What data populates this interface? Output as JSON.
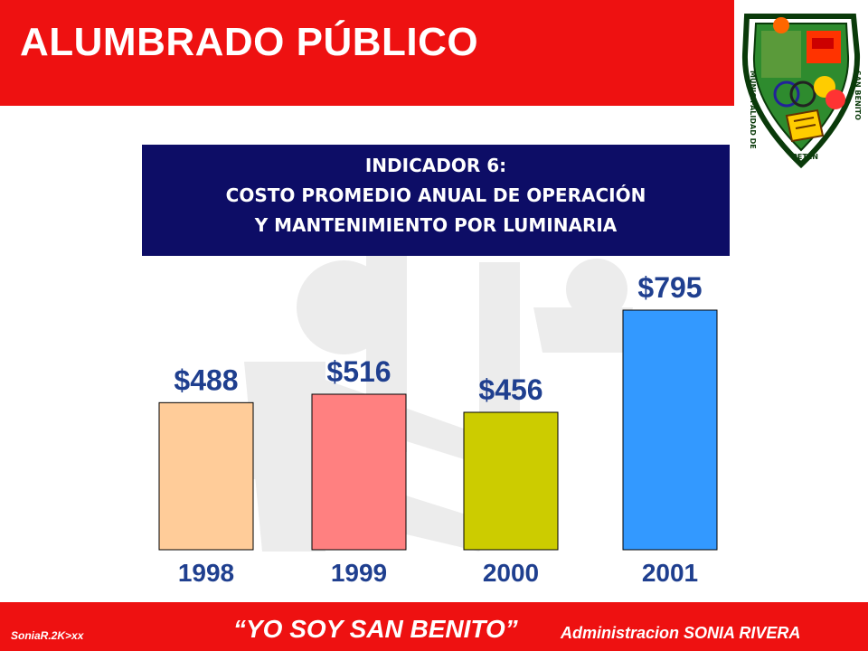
{
  "header": {
    "title": "ALUMBRADO PÚBLICO",
    "background": "#ee1111"
  },
  "logo": {
    "icon": "municipal-coat-of-arms-icon",
    "text_left": "MUNICIPALIDAD DE",
    "text_right": "SAN BENITO",
    "text_bottom": "PETÉN"
  },
  "indicator": {
    "label": "INDICADOR 6:",
    "line1": "COSTO PROMEDIO ANUAL DE OPERACIÓN",
    "line2": "Y MANTENIMIENTO POR LUMINARIA",
    "background": "#0d0d66"
  },
  "chart_data": {
    "type": "bar",
    "categories": [
      "1998",
      "1999",
      "2000",
      "2001"
    ],
    "values": [
      488,
      516,
      456,
      795
    ],
    "data_labels": [
      "$488",
      "$516",
      "$456",
      "$795"
    ],
    "colors": [
      "#ffcc99",
      "#ff8080",
      "#cccc00",
      "#3399ff"
    ],
    "label_color": "#1f3f8f",
    "ylim": [
      0,
      990
    ],
    "grid": false,
    "legend": "none",
    "title": "",
    "xlabel": "",
    "ylabel": ""
  },
  "footer": {
    "author": "SoniaR.2K>xx",
    "slogan": "“YO SOY SAN BENITO”",
    "admin": "Administracion SONIA RIVERA",
    "background": "#ee1111"
  },
  "watermark": {
    "icon": "lightbulb-worker-watermark-icon"
  }
}
